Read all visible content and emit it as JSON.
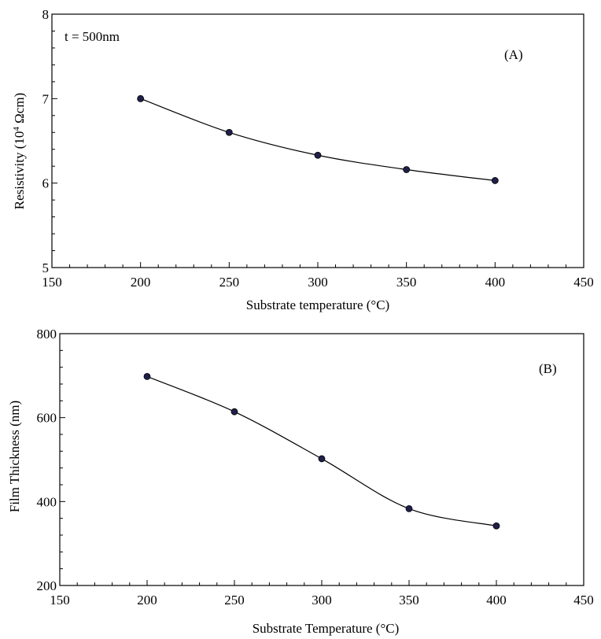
{
  "chart_data": [
    {
      "type": "line",
      "panel_label": "(A)",
      "annotation": "t = 500nm",
      "xlabel": "Substrate temperature (°C)",
      "ylabel_prefix": "Resistivity (10",
      "ylabel_exp": "4",
      "ylabel_suffix": " Ωcm)",
      "xlim": [
        150,
        450
      ],
      "ylim": [
        5,
        8
      ],
      "xticks": [
        150,
        200,
        250,
        300,
        350,
        400,
        450
      ],
      "yticks": [
        5,
        6,
        7,
        8
      ],
      "x": [
        200,
        250,
        300,
        350,
        400
      ],
      "y": [
        7.0,
        6.6,
        6.33,
        6.16,
        6.03
      ],
      "grid": false,
      "marker_color": "#1f1f4a"
    },
    {
      "type": "line",
      "panel_label": "(B)",
      "xlabel": "Substrate Temperature (°C)",
      "ylabel": "Film Thickness (nm)",
      "xlim": [
        150,
        450
      ],
      "ylim": [
        200,
        800
      ],
      "xticks": [
        150,
        200,
        250,
        300,
        350,
        400,
        450
      ],
      "yticks": [
        200,
        400,
        600,
        800
      ],
      "x": [
        200,
        250,
        300,
        350,
        400
      ],
      "y": [
        698,
        614,
        502,
        383,
        342
      ],
      "grid": false,
      "marker_color": "#1f1f4a"
    }
  ]
}
